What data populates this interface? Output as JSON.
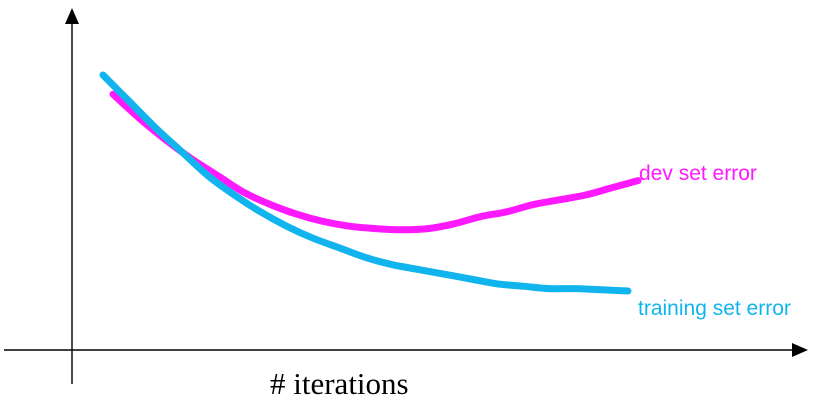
{
  "chart_data": {
    "type": "line",
    "title": "",
    "xlabel": "# iterations",
    "ylabel": "",
    "grid": false,
    "legend": "inline-right",
    "xlim": [
      0,
      100
    ],
    "ylim": [
      0,
      100
    ],
    "series": [
      {
        "name": "dev set error",
        "color": "#ff19ff",
        "x": [
          0,
          5,
          10,
          15,
          20,
          25,
          30,
          35,
          40,
          45,
          50,
          55,
          60,
          65,
          70,
          75,
          80,
          85,
          90,
          95,
          100
        ],
        "y": [
          92,
          82,
          73,
          65,
          58,
          51,
          46,
          42,
          39,
          37,
          36,
          35.5,
          36,
          38,
          41,
          43,
          46,
          48,
          50,
          53,
          56
        ]
      },
      {
        "name": "training set error",
        "color": "#12b4ee",
        "x": [
          0,
          5,
          10,
          15,
          20,
          25,
          30,
          35,
          40,
          45,
          50,
          55,
          60,
          65,
          70,
          75,
          80,
          85,
          90,
          95,
          100
        ],
        "y": [
          100,
          89,
          78,
          68,
          58,
          50,
          43,
          37,
          32,
          28,
          24,
          21,
          19,
          17,
          15,
          13,
          12,
          11,
          11,
          10.5,
          10
        ]
      }
    ]
  }
}
